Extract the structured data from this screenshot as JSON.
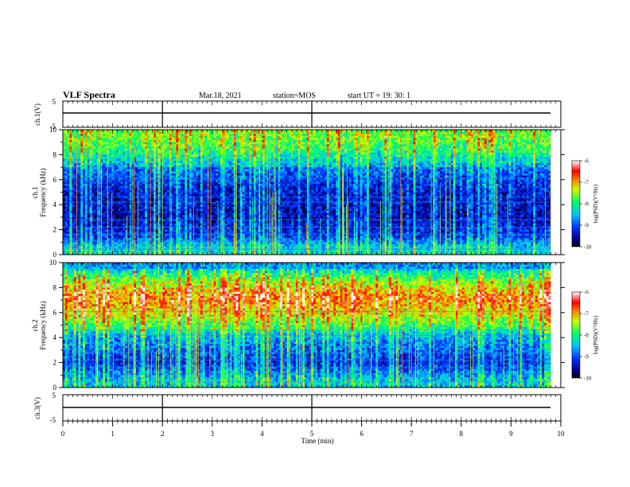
{
  "header": {
    "title": "VLF Spectra",
    "date": "Mar.18, 2021",
    "station": "station=MOS",
    "start": "start UT =   19: 30: 1"
  },
  "chart_data": [
    {
      "type": "line",
      "panel": "ch1-voltage",
      "ylabel": "ch.1(V)",
      "ylim": [
        -5,
        5
      ],
      "y_ticks": [
        "5",
        "-5"
      ],
      "x": [
        0,
        9.8
      ],
      "values": [
        0,
        0
      ]
    },
    {
      "type": "heatmap",
      "panel": "ch1-spectrogram",
      "ylabel_channel": "ch.1",
      "ylabel": "Frequency (kHz)",
      "ylim": [
        0,
        10
      ],
      "y_ticks": [
        "0",
        "2",
        "4",
        "6",
        "8",
        "10"
      ],
      "colorbar": {
        "label": "log(PSD)(V²/Hz)",
        "range": [
          -10,
          -6
        ],
        "ticks": [
          "-6",
          "-7",
          "-8",
          "-9",
          "-10"
        ]
      },
      "bright_band_khz": [
        7,
        10
      ],
      "intensity_profile_khz": [
        {
          "f": 0.5,
          "v": -8.5
        },
        {
          "f": 1.5,
          "v": -9.3
        },
        {
          "f": 3,
          "v": -9.6
        },
        {
          "f": 5,
          "v": -9.5
        },
        {
          "f": 7,
          "v": -9.0
        },
        {
          "f": 8.5,
          "v": -8.2
        },
        {
          "f": 9.5,
          "v": -8.0
        }
      ]
    },
    {
      "type": "heatmap",
      "panel": "ch2-spectrogram",
      "ylabel_channel": "ch.2",
      "ylabel": "Frequency (kHz)",
      "ylim": [
        0,
        10
      ],
      "y_ticks": [
        "0",
        "2",
        "4",
        "6",
        "8",
        "10"
      ],
      "colorbar": {
        "label": "log(PSD)(V²/Hz)",
        "range": [
          -10,
          -6
        ],
        "ticks": [
          "-6",
          "-7",
          "-8",
          "-9",
          "-10"
        ]
      },
      "bright_band_khz": [
        4.5,
        9.5
      ],
      "intensity_profile_khz": [
        {
          "f": 0.5,
          "v": -8.6
        },
        {
          "f": 2,
          "v": -9.4
        },
        {
          "f": 4,
          "v": -8.8
        },
        {
          "f": 6,
          "v": -7.6
        },
        {
          "f": 7.2,
          "v": -7.2
        },
        {
          "f": 8.5,
          "v": -7.9
        },
        {
          "f": 9.5,
          "v": -8.8
        }
      ]
    },
    {
      "type": "line",
      "panel": "ch3-voltage",
      "ylabel": "ch.3(V)",
      "ylim": [
        -5,
        5
      ],
      "y_ticks": [
        "5",
        "-5"
      ],
      "x": [
        0,
        9.8
      ],
      "values": [
        0,
        0
      ]
    }
  ],
  "x_axis": {
    "label": "Time (min)",
    "xlim": [
      0,
      10
    ],
    "ticks": [
      "0",
      "1",
      "2",
      "3",
      "4",
      "5",
      "6",
      "7",
      "8",
      "9",
      "10"
    ]
  }
}
